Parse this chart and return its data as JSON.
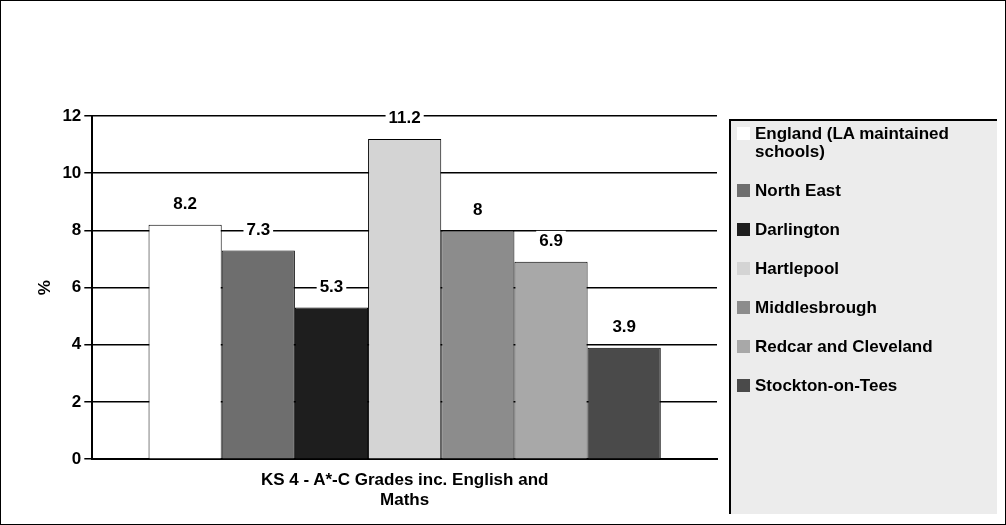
{
  "chart_data": {
    "type": "bar",
    "categories": [
      "KS 4 - A*-C Grades inc. English and Maths"
    ],
    "ylabel": "%",
    "ylim": [
      0,
      12
    ],
    "yticks": [
      0,
      2,
      4,
      6,
      8,
      10,
      12
    ],
    "grid": "y",
    "legend": "right",
    "data_labels": true,
    "series": [
      {
        "name": "England (LA maintained schools)",
        "color": "#ffffff",
        "values": [
          8.2
        ]
      },
      {
        "name": "North East",
        "color": "#6e6e6e",
        "values": [
          7.3
        ]
      },
      {
        "name": "Darlington",
        "color": "#1e1e1e",
        "values": [
          5.3
        ]
      },
      {
        "name": "Hartlepool",
        "color": "#d4d4d4",
        "values": [
          11.2
        ]
      },
      {
        "name": "Middlesbrough",
        "color": "#8c8c8c",
        "values": [
          8
        ]
      },
      {
        "name": "Redcar and Cleveland",
        "color": "#a8a8a8",
        "values": [
          6.9
        ]
      },
      {
        "name": "Stockton-on-Tees",
        "color": "#4a4a4a",
        "values": [
          3.9
        ]
      }
    ]
  }
}
